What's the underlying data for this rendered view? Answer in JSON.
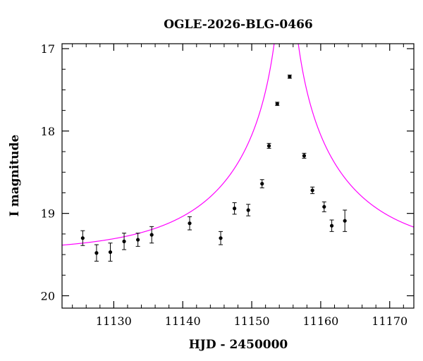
{
  "chart_data": {
    "type": "scatter",
    "title": "OGLE-2026-BLG-0466",
    "xlabel": "HJD - 2450000",
    "ylabel": "I magnitude",
    "xlim": [
      11122.5,
      11173.5
    ],
    "ylim": [
      20.15,
      16.94
    ],
    "y_inverted": true,
    "x_ticks": [
      11130,
      11140,
      11150,
      11160,
      11170
    ],
    "x_minor_step": 2,
    "y_ticks": [
      17,
      18,
      19,
      20
    ],
    "y_minor_step": 0.25,
    "grid": false,
    "points_color": "#000000",
    "model_color": "#ff00ff",
    "series": [
      {
        "kind": "points_with_errorbars",
        "x": [
          11125.5,
          11127.5,
          11129.5,
          11131.5,
          11133.5,
          11135.5,
          11141.0,
          11145.5,
          11147.5,
          11149.5,
          11151.5,
          11152.5,
          11153.7,
          11155.5,
          11157.6,
          11158.8,
          11160.5,
          11161.6,
          11163.5
        ],
        "y": [
          19.3,
          19.48,
          19.47,
          19.34,
          19.32,
          19.26,
          19.12,
          19.3,
          18.94,
          18.96,
          18.64,
          18.18,
          17.67,
          17.34,
          18.3,
          18.72,
          18.92,
          19.15,
          19.09
        ],
        "yerr": [
          0.09,
          0.1,
          0.11,
          0.1,
          0.08,
          0.1,
          0.08,
          0.08,
          0.07,
          0.07,
          0.05,
          0.03,
          0.02,
          0.02,
          0.03,
          0.04,
          0.06,
          0.07,
          0.13
        ]
      },
      {
        "kind": "model_curve",
        "t0": 11155.0,
        "tE": 18.0,
        "u0": 0.009,
        "base_mag": 19.47,
        "x_range": [
          11122.5,
          11173.5
        ]
      }
    ]
  }
}
